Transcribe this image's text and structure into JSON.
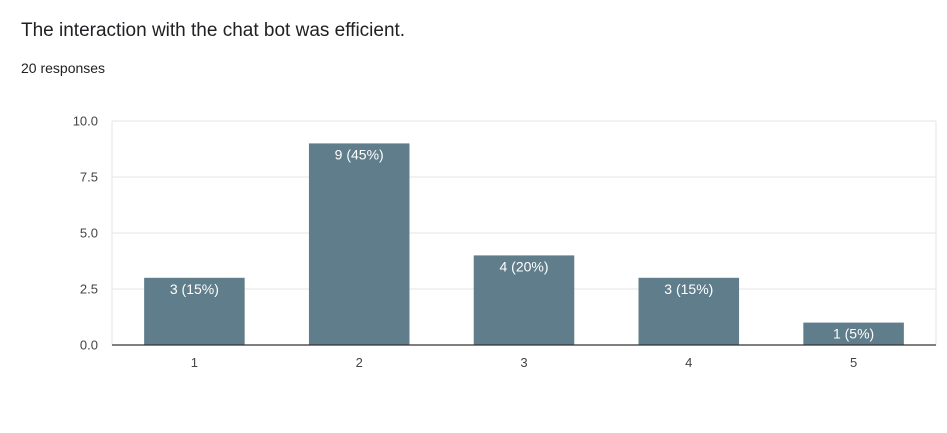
{
  "question": {
    "title": "The interaction with the chat bot was efficient.",
    "responses_label": "20 responses"
  },
  "colors": {
    "bar": "#607d8b",
    "grid": "#e6e6e6",
    "axis": "#333333",
    "tick_label": "#444444",
    "bar_label": "#ffffff"
  },
  "chart_data": {
    "type": "bar",
    "title": "",
    "xlabel": "",
    "ylabel": "",
    "categories": [
      "1",
      "2",
      "3",
      "4",
      "5"
    ],
    "values": [
      3,
      9,
      4,
      3,
      1
    ],
    "bar_labels": [
      "3 (15%)",
      "9 (45%)",
      "4 (20%)",
      "3 (15%)",
      "1 (5%)"
    ],
    "ylim": [
      0,
      10
    ],
    "yticks": [
      0,
      2.5,
      5,
      7.5,
      10
    ],
    "ytick_labels": [
      "0.0",
      "2.5",
      "5.0",
      "7.5",
      "10.0"
    ],
    "grid": true,
    "legend": "none"
  }
}
